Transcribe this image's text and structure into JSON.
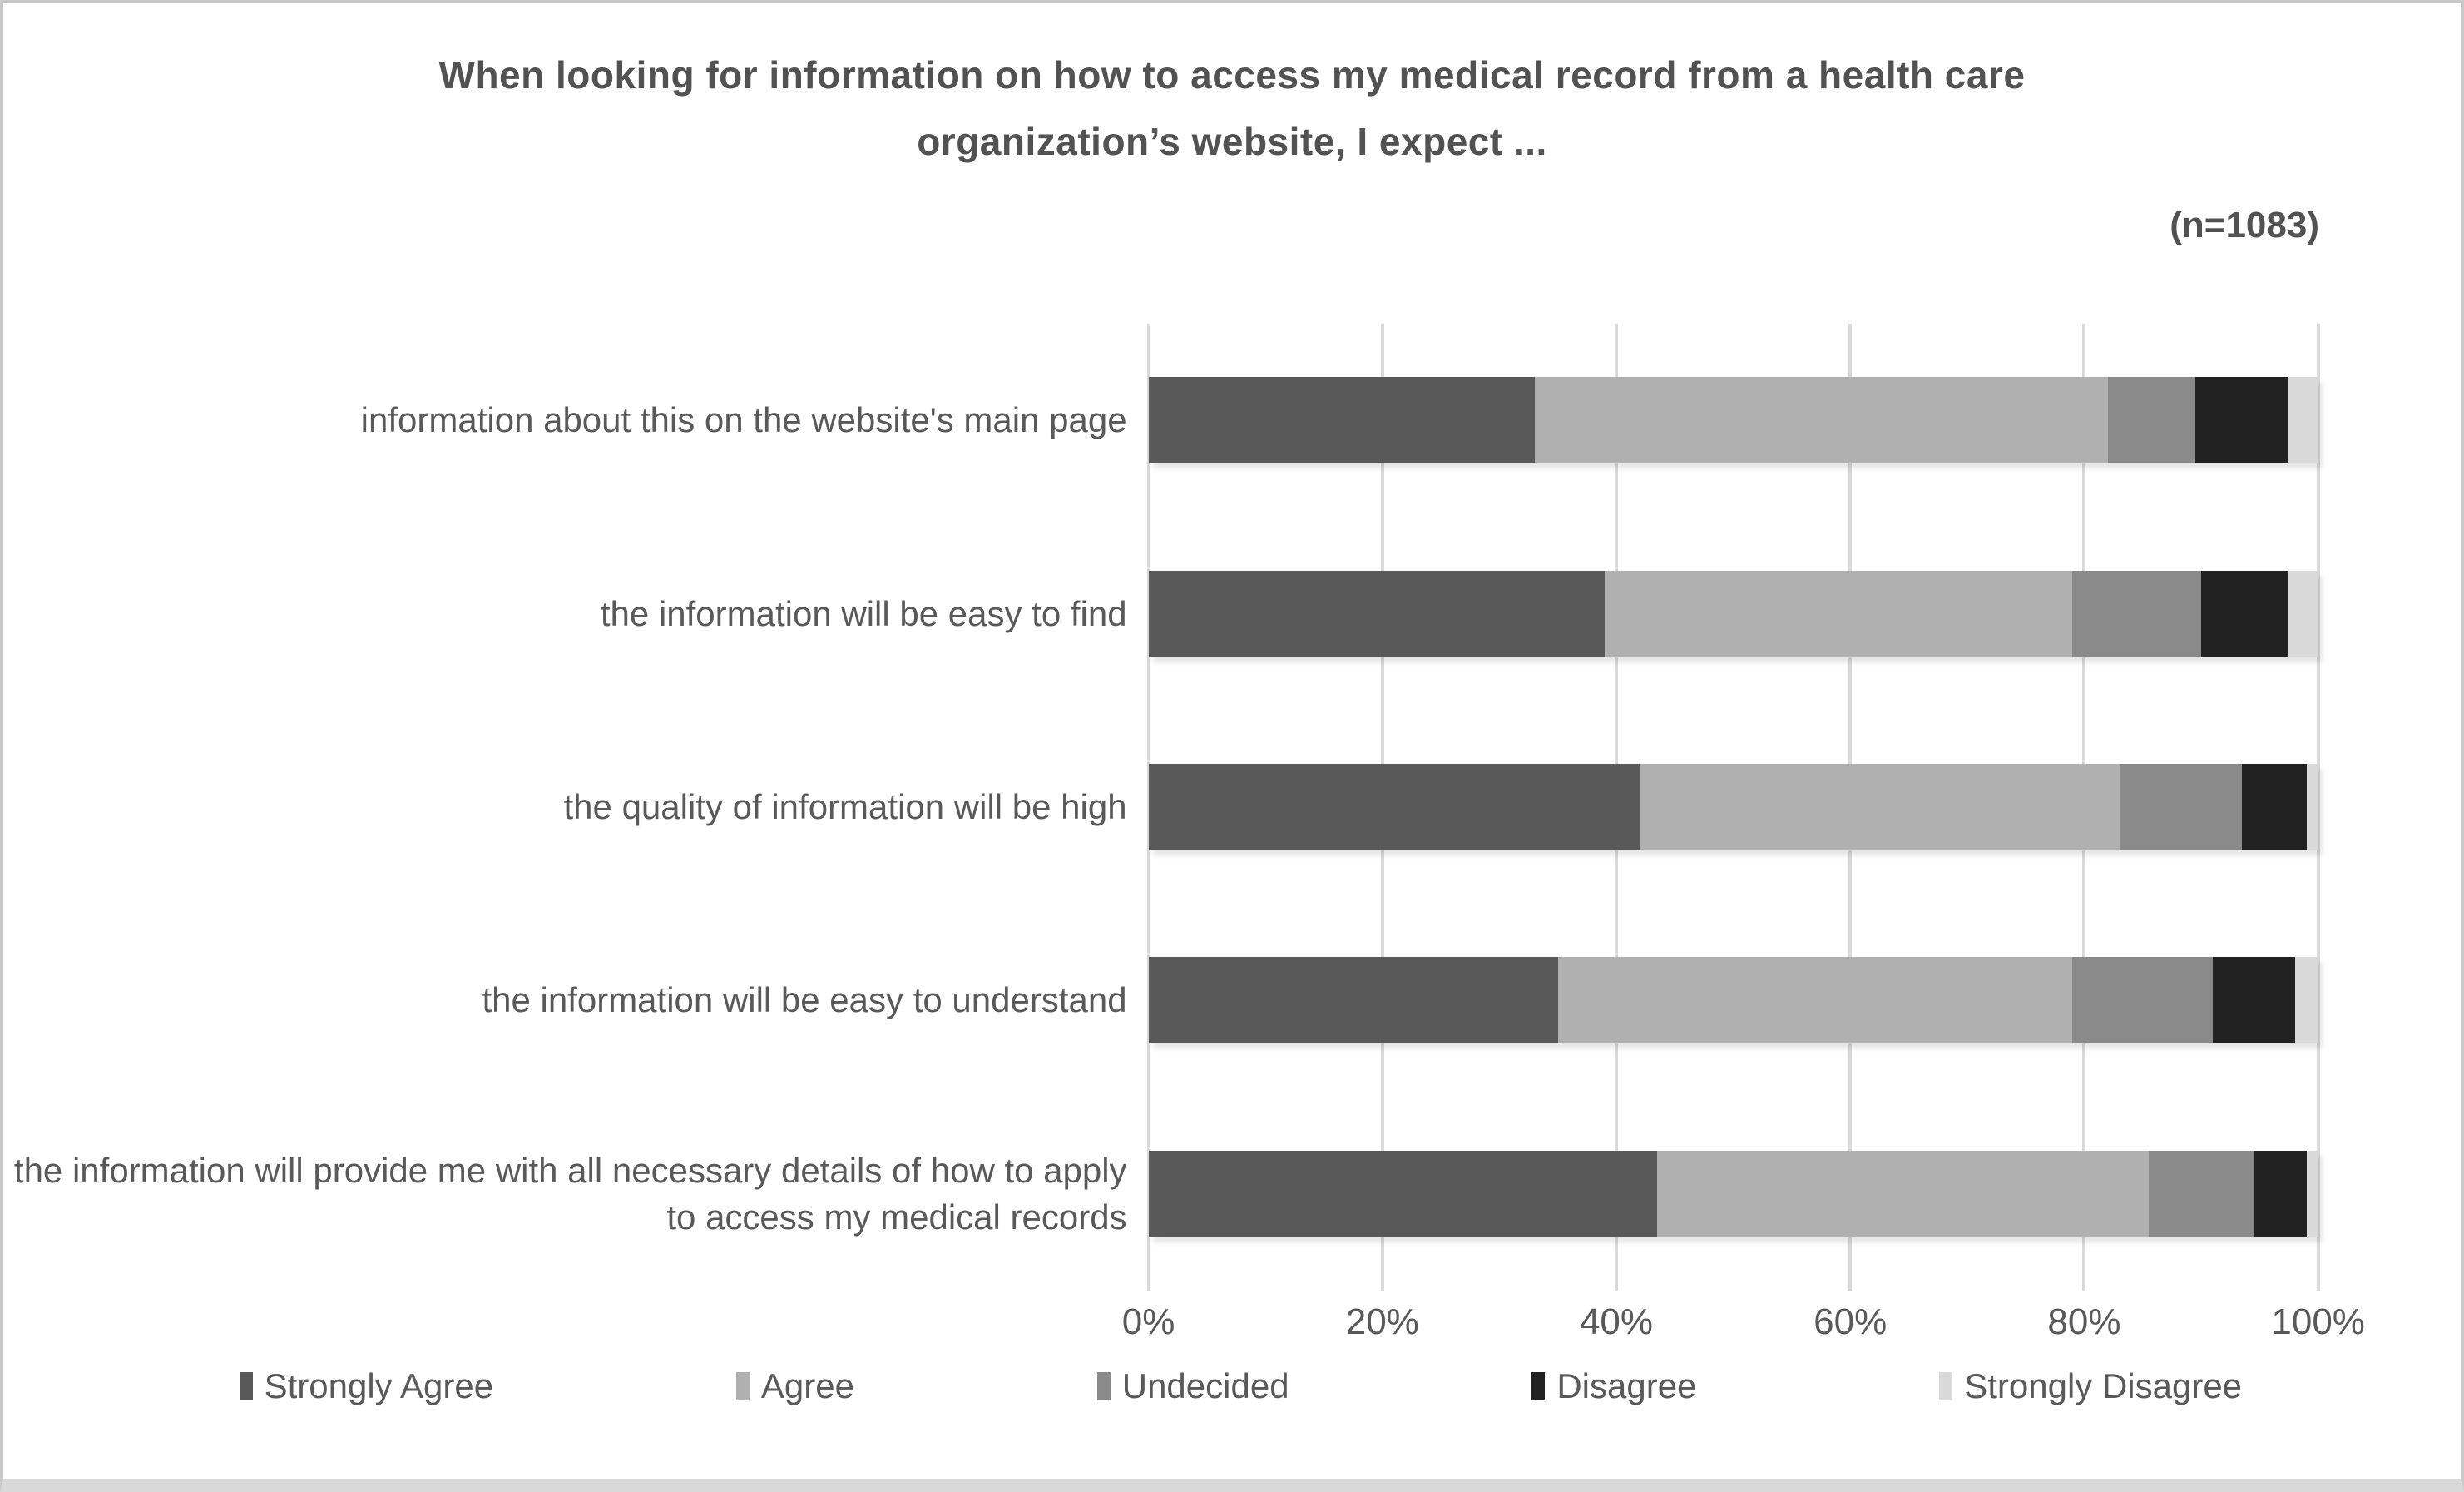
{
  "figure": {
    "title_lines": [
      "When looking for information on how to access my medical record from a health care",
      "organization’s website, I expect ..."
    ],
    "sample_size_label": "(n=1083)"
  },
  "chart_data": {
    "type": "bar",
    "orientation": "horizontal",
    "stacked": true,
    "title": "When looking for information on how to access my medical record from a health care organization’s website, I expect ...",
    "annotation": "(n=1083)",
    "categories": [
      "information about this on the website's main page",
      "the information will be easy to find",
      "the quality of information will be high",
      "the information will be easy to understand",
      "the information will provide me with all necessary details of how to apply to access my medical records"
    ],
    "series": [
      {
        "name": "Strongly Agree",
        "color": "#595959",
        "values": [
          33,
          39,
          42,
          35,
          43.5
        ]
      },
      {
        "name": "Agree",
        "color": "#b0b0b0",
        "values": [
          49,
          40,
          41,
          44,
          42
        ]
      },
      {
        "name": "Undecided",
        "color": "#8a8a8a",
        "values": [
          7.5,
          11,
          10.5,
          12,
          9
        ]
      },
      {
        "name": "Disagree",
        "color": "#212121",
        "values": [
          8,
          7.5,
          5.5,
          7,
          4.5
        ]
      },
      {
        "name": "Strongly Disagree",
        "color": "#d9d9d9",
        "values": [
          2.5,
          2.5,
          1,
          2,
          1
        ]
      }
    ],
    "x_axis": {
      "ticks": [
        "0%",
        "20%",
        "40%",
        "60%",
        "80%",
        "100%"
      ],
      "range": [
        0,
        100
      ],
      "tick_step": 20
    },
    "values_unit": "percent",
    "legend_position": "bottom",
    "grid": "vertical",
    "gridline_color": "#d9d9d9",
    "text_color": "#595959"
  }
}
